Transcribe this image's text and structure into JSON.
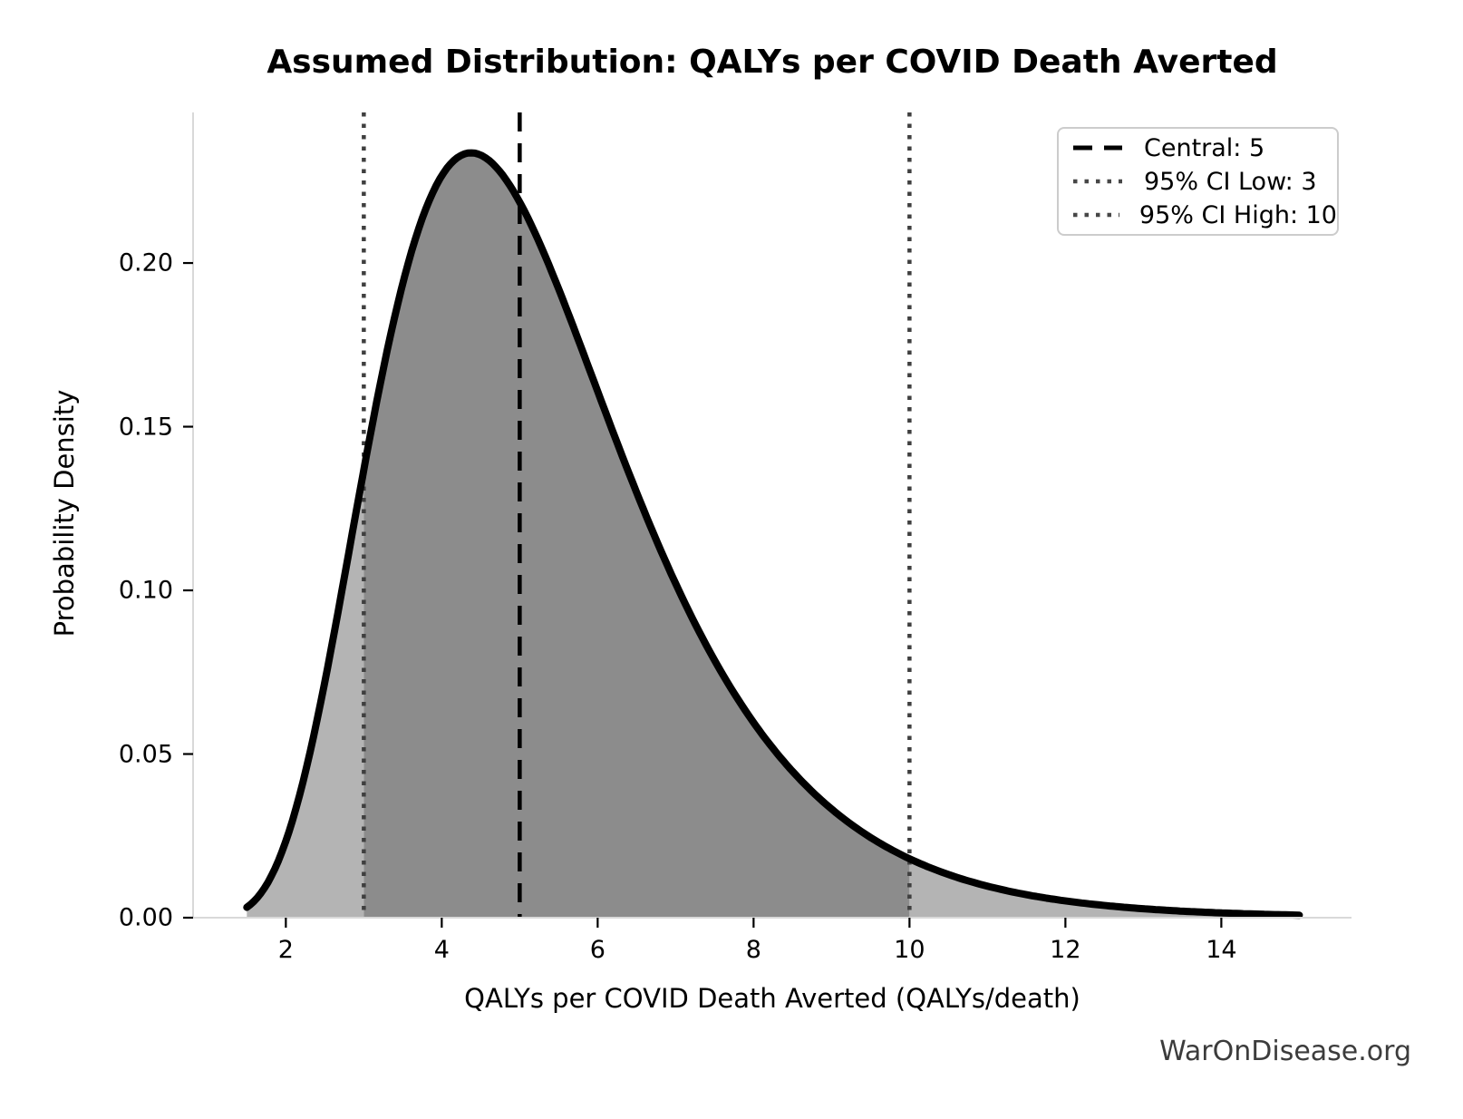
{
  "chart_data": {
    "type": "area",
    "title": "Assumed Distribution: QALYs per COVID Death Averted",
    "xlabel": "QALYs per COVID Death Averted (QALYs/death)",
    "ylabel": "Probability Density",
    "xlim": [
      0.81,
      15.67
    ],
    "ylim": [
      0,
      0.246
    ],
    "grid": false,
    "legend_position": "upper right",
    "x_ticks": [
      2,
      4,
      6,
      8,
      10,
      12,
      14
    ],
    "x_tick_labels": [
      "2",
      "4",
      "6",
      "8",
      "10",
      "12",
      "14"
    ],
    "y_ticks": [
      0,
      0.05,
      0.1,
      0.15,
      0.2
    ],
    "y_tick_labels": [
      "0.00",
      "0.05",
      "0.10",
      "0.15",
      "0.20"
    ],
    "central": 5,
    "ci_low": 3,
    "ci_high": 10,
    "distribution": {
      "family": "lognormal",
      "median": 5,
      "sigma": 0.365,
      "x_start": 1.5,
      "x_end": 15
    },
    "density_points": {
      "x": [
        1.5,
        2,
        2.5,
        3,
        3.5,
        4,
        4.4,
        5,
        5.5,
        6,
        7,
        8,
        9,
        10,
        11,
        12,
        13,
        14,
        15
      ],
      "density": [
        0.0032,
        0.0234,
        0.0721,
        0.1369,
        0.1938,
        0.2267,
        0.2337,
        0.2186,
        0.1921,
        0.1608,
        0.1021,
        0.0596,
        0.0332,
        0.018,
        0.0096,
        0.0051,
        0.0027,
        0.0015,
        0.0008
      ]
    },
    "legend": [
      {
        "label": "Central: 5",
        "style": "dashed",
        "color": "#000000"
      },
      {
        "label": "95% CI Low: 3",
        "style": "dotted",
        "color": "#474747"
      },
      {
        "label": "95% CI High: 10",
        "style": "dotted",
        "color": "#474747"
      }
    ],
    "colors": {
      "curve": "#000000",
      "fill_outer": "#b4b4b4",
      "fill_inner": "#8c8c8c",
      "central_line": "#000000",
      "ci_line": "#3f3f3f",
      "spine": "#d9d9d9",
      "tick": "#000000",
      "text": "#000000"
    }
  },
  "footer": {
    "watermark": "WarOnDisease.org"
  }
}
